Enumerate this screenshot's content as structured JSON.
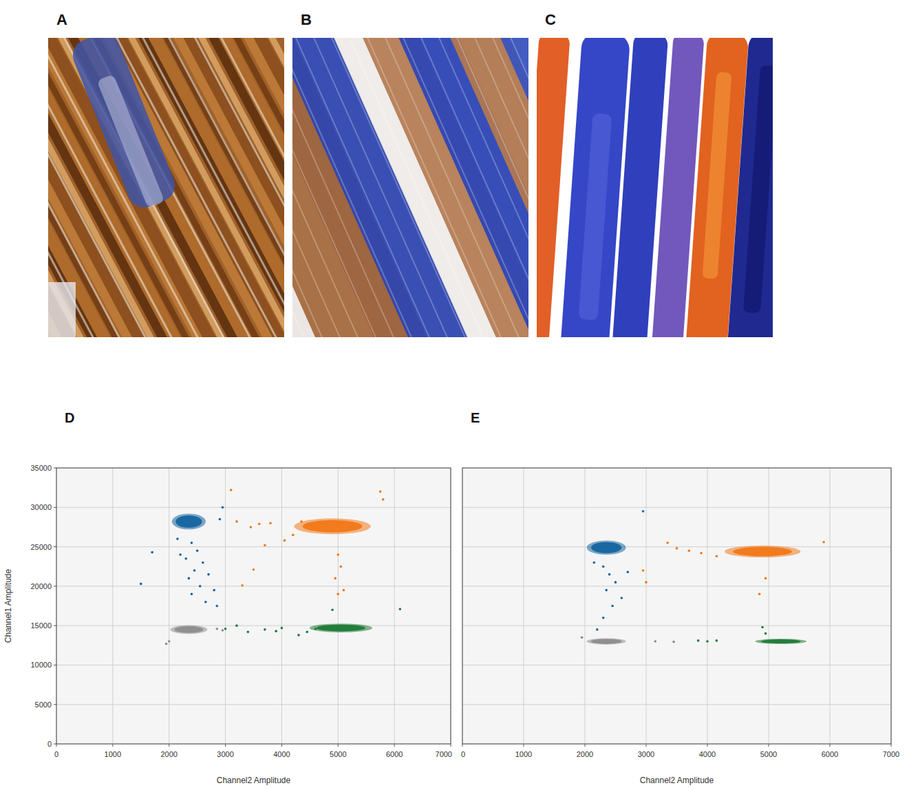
{
  "micrographs": [
    {
      "label": "A"
    },
    {
      "label": "B"
    },
    {
      "label": "C"
    }
  ],
  "chart_data": [
    {
      "type": "scatter",
      "label": "D",
      "xlabel": "Channel2 Amplitude",
      "ylabel": "Channel1 Amplitude",
      "xlim": [
        0,
        7000
      ],
      "ylim": [
        0,
        35000
      ],
      "xticks": [
        0,
        1000,
        2000,
        3000,
        4000,
        5000,
        6000,
        7000
      ],
      "yticks": [
        0,
        5000,
        10000,
        15000,
        20000,
        25000,
        30000,
        35000
      ],
      "grid": true,
      "marker": "circle",
      "series": [
        {
          "color": "#15649f",
          "cluster": {
            "x": 2350,
            "y": 28200,
            "x_spread": 300,
            "y_spread": 1000
          },
          "x": [
            2150,
            2400,
            2500,
            2300,
            2600,
            2450,
            2700,
            2350,
            2550,
            2800,
            2400,
            2650,
            2850,
            2200,
            1500,
            1700,
            2900,
            2950
          ],
          "values": [
            26000,
            25500,
            24500,
            23500,
            23000,
            22000,
            21500,
            21000,
            20000,
            19500,
            19000,
            18000,
            17500,
            24000,
            20300,
            24300,
            28500,
            30000
          ]
        },
        {
          "color": "#f07818",
          "cluster": {
            "x": 4900,
            "y": 27600,
            "x_spread": 680,
            "y_spread": 1000
          },
          "x": [
            3100,
            3200,
            3450,
            3600,
            3800,
            3500,
            3300,
            4050,
            4200,
            5000,
            5050,
            4950,
            5100,
            5000,
            5800,
            5750,
            4350,
            3700
          ],
          "values": [
            32200,
            28200,
            27500,
            27900,
            28000,
            22100,
            20100,
            25800,
            26500,
            24000,
            22500,
            21000,
            19500,
            19000,
            31000,
            32000,
            28200,
            25200
          ]
        },
        {
          "color": "#8c8c8c",
          "cluster": {
            "x": 2350,
            "y": 14500,
            "x_spread": 330,
            "y_spread": 550
          },
          "x": [
            2000,
            1950,
            2850,
            2950
          ],
          "values": [
            13000,
            12700,
            14600,
            14400
          ]
        },
        {
          "color": "#1f7a36",
          "cluster": {
            "x": 5050,
            "y": 14700,
            "x_spread": 560,
            "y_spread": 550
          },
          "x": [
            3000,
            3200,
            3400,
            3700,
            3900,
            4000,
            4300,
            4450,
            4600,
            6100,
            4900
          ],
          "values": [
            14600,
            15000,
            14200,
            14500,
            14300,
            14700,
            13800,
            14200,
            14600,
            17100,
            17000
          ]
        }
      ]
    },
    {
      "type": "scatter",
      "label": "E",
      "xlabel": "Channel2 Amplitude",
      "xlim": [
        0,
        7000
      ],
      "ylim": [
        0,
        35000
      ],
      "xticks": [
        0,
        1000,
        2000,
        3000,
        4000,
        5000,
        6000,
        7000
      ],
      "yticks": [
        0,
        5000,
        10000,
        15000,
        20000,
        25000,
        30000,
        35000
      ],
      "grid": true,
      "tick_labels": "x",
      "marker": "circle",
      "series": [
        {
          "color": "#15649f",
          "cluster": {
            "x": 2350,
            "y": 24900,
            "x_spread": 320,
            "y_spread": 900
          },
          "x": [
            2300,
            2400,
            2500,
            2350,
            2600,
            2450,
            2300,
            2200,
            2700,
            2950,
            2150
          ],
          "values": [
            22500,
            21500,
            20500,
            19500,
            18500,
            17500,
            16000,
            14500,
            21800,
            29500,
            23000
          ]
        },
        {
          "color": "#f07818",
          "cluster": {
            "x": 4900,
            "y": 24400,
            "x_spread": 620,
            "y_spread": 750
          },
          "x": [
            3350,
            3500,
            3700,
            3900,
            4150,
            4950,
            4850,
            5900,
            2950,
            3000
          ],
          "values": [
            25500,
            24800,
            24500,
            24200,
            23800,
            21000,
            19000,
            25600,
            22000,
            20500
          ]
        },
        {
          "color": "#8c8c8c",
          "cluster": {
            "x": 2350,
            "y": 13000,
            "x_spread": 320,
            "y_spread": 400
          },
          "x": [
            3150,
            3450,
            1950
          ],
          "values": [
            13000,
            12950,
            13500
          ]
        },
        {
          "color": "#1f7a36",
          "cluster": {
            "x": 5200,
            "y": 13000,
            "x_spread": 420,
            "y_spread": 330
          },
          "x": [
            3850,
            4150,
            4000,
            4950,
            4900
          ],
          "values": [
            13100,
            13100,
            13000,
            14000,
            14800
          ]
        }
      ]
    }
  ]
}
